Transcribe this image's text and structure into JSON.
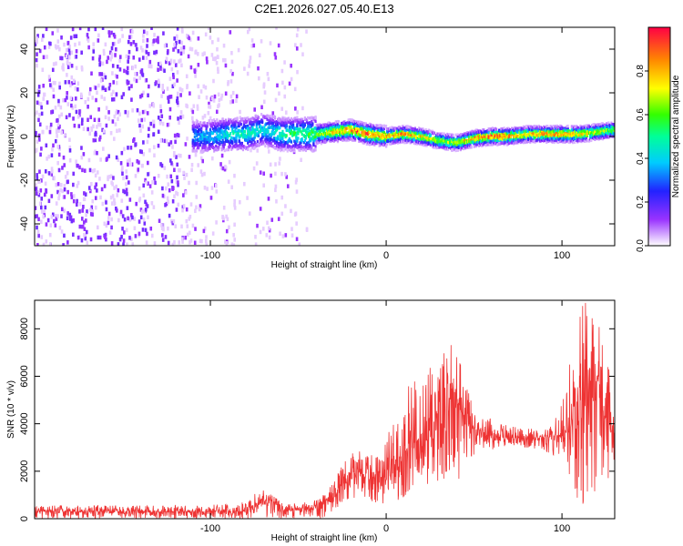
{
  "title": "C2E1.2026.027.05.40.E13",
  "chart_data": [
    {
      "type": "heatmap",
      "xlabel": "Height of straight line (km)",
      "ylabel": "Frequency (Hz)",
      "xlim": [
        -200,
        130
      ],
      "ylim": [
        -50,
        50
      ],
      "xticks": [
        -100,
        0,
        100
      ],
      "yticks": [
        -40,
        -20,
        0,
        20,
        40
      ],
      "grid": false,
      "colorbar": {
        "label": "Normalized spectral amplitude",
        "range": [
          0,
          1
        ],
        "ticks": [
          0.0,
          0.2,
          0.4,
          0.6,
          0.8
        ],
        "colormap": [
          "#ffffff",
          "#e6ccff",
          "#9933ff",
          "#2222ff",
          "#00e5ff",
          "#00ff33",
          "#ffff00",
          "#ff8800",
          "#ff0044"
        ]
      },
      "ridge": {
        "x": [
          -110,
          -100,
          -90,
          -80,
          -70,
          -60,
          -50,
          -40,
          -30,
          -20,
          -10,
          0,
          10,
          20,
          30,
          40,
          50,
          60,
          70,
          80,
          90,
          100,
          110,
          120,
          130
        ],
        "frequency": [
          0,
          0,
          1,
          1,
          3,
          1,
          1,
          1,
          2,
          3,
          1,
          0,
          1,
          0,
          -2,
          -3,
          -1,
          0,
          0,
          1,
          1,
          1,
          1,
          2,
          3
        ],
        "peak_amplitude": [
          0.35,
          0.4,
          0.45,
          0.5,
          0.45,
          0.5,
          0.55,
          0.6,
          0.8,
          0.9,
          0.95,
          0.85,
          0.9,
          0.8,
          0.65,
          0.7,
          0.85,
          0.95,
          0.9,
          0.8,
          0.85,
          0.9,
          0.8,
          0.7,
          0.65
        ]
      },
      "noise_region_x": [
        -200,
        -45
      ]
    },
    {
      "type": "line",
      "xlabel": "Height of straight line (km)",
      "ylabel": "SNR (10 * v/v)",
      "xlim": [
        -200,
        130
      ],
      "ylim": [
        0,
        9200
      ],
      "xticks": [
        -100,
        0,
        100
      ],
      "yticks": [
        0,
        2000,
        4000,
        6000,
        8000
      ],
      "grid": false,
      "color": "#ee3333",
      "series": [
        {
          "x": [
            -200,
            -180,
            -160,
            -140,
            -120,
            -100,
            -90,
            -80,
            -72,
            -66,
            -60,
            -52,
            -44,
            -36,
            -30,
            -24,
            -16,
            -8,
            -2,
            4,
            10,
            16,
            22,
            28,
            34,
            38,
            42,
            48,
            54,
            60,
            70,
            80,
            88,
            94,
            98,
            104,
            108,
            114,
            120,
            124,
            128,
            130
          ],
          "y": [
            300,
            300,
            300,
            300,
            300,
            300,
            300,
            320,
            600,
            800,
            400,
            350,
            380,
            600,
            900,
            1400,
            1900,
            1800,
            1700,
            2400,
            2800,
            3200,
            3500,
            3900,
            4600,
            5200,
            4600,
            3900,
            3700,
            3500,
            3400,
            3400,
            3350,
            3450,
            3500,
            3700,
            4700,
            5400,
            5100,
            4400,
            3800,
            3600
          ]
        },
        {
          "x": [
            -200,
            -180,
            -160,
            -140,
            -120,
            -100,
            -90,
            -80,
            -72,
            -66,
            -60,
            -52,
            -44,
            -36,
            -30,
            -24,
            -16,
            -8,
            -2,
            4,
            10,
            16,
            22,
            28,
            34,
            38,
            42,
            48,
            54,
            60,
            70,
            80,
            88,
            94,
            98,
            104,
            108,
            114,
            120,
            124,
            128,
            130
          ],
          "y": [
            0,
            0,
            0,
            0,
            0,
            0,
            0,
            0,
            0,
            0,
            0,
            0,
            0,
            0,
            300,
            700,
            900,
            700,
            500,
            700,
            900,
            1200,
            1400,
            1500,
            1600,
            1700,
            1500,
            2600,
            2800,
            2900,
            3000,
            3000,
            2900,
            2700,
            2400,
            1900,
            800,
            300,
            400,
            800,
            1600,
            2000
          ]
        },
        {
          "x": [
            -200,
            -180,
            -160,
            -140,
            -120,
            -100,
            -90,
            -80,
            -72,
            -66,
            -60,
            -52,
            -44,
            -36,
            -30,
            -24,
            -16,
            -8,
            -2,
            4,
            10,
            16,
            22,
            28,
            34,
            38,
            42,
            48,
            54,
            60,
            70,
            80,
            88,
            94,
            98,
            104,
            108,
            114,
            120,
            124,
            128,
            130
          ],
          "y": [
            550,
            550,
            560,
            560,
            560,
            600,
            650,
            700,
            1350,
            1100,
            750,
            650,
            700,
            1000,
            1600,
            2400,
            3000,
            2900,
            2800,
            4500,
            5300,
            6000,
            6500,
            6700,
            7100,
            7400,
            6600,
            5200,
            4500,
            4200,
            3900,
            3800,
            3800,
            3900,
            4500,
            6300,
            8700,
            9200,
            8600,
            7300,
            6000,
            5100
          ]
        }
      ]
    }
  ]
}
